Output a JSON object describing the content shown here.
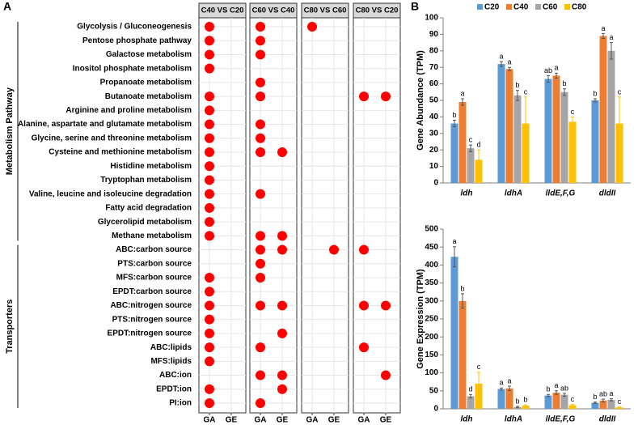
{
  "chart_data": [
    {
      "type": "dot-matrix",
      "panel": "A",
      "color": "#ff0000",
      "rows": [
        "Glycolysis / Gluconeogenesis",
        "Pentose phosphate pathway",
        "Galactose metabolism",
        "Inositol phosphate metabolism",
        "Propanoate metabolism",
        "Butanoate metabolism",
        "Arginine and proline metabolism",
        "Alanine, aspartate and glutamate metabolism",
        "Glycine, serine and threonine metabolism",
        "Cysteine and methionine metabolism",
        "Histidine metabolism",
        "Tryptophan metabolism",
        "Valine, leucine and isoleucine degradation",
        "Fatty acid degradation",
        "Glycerolipid metabolism",
        "Methane metabolism",
        "ABC:carbon source",
        "PTS:carbon source",
        "MFS:carbon source",
        "EPDT:carbon source",
        "ABC:nitrogen source",
        "PTS:nitrogen source",
        "EPDT:nitrogen source",
        "ABC:lipids",
        "MFS:lipids",
        "ABC:ion",
        "EPDT:ion",
        "PI:ion"
      ],
      "columns": [
        "GA",
        "GE"
      ],
      "groups": [
        {
          "label": "Metabolism Pathway",
          "rows": [
            0,
            15
          ]
        },
        {
          "label": "Transporters",
          "rows": [
            16,
            27
          ]
        }
      ],
      "facets": [
        {
          "title": "C40 VS C20",
          "hits": [
            [
              0,
              1,
              2,
              3,
              5,
              6,
              7,
              8,
              9,
              10,
              11,
              12,
              13,
              14,
              15,
              18,
              19,
              20,
              21,
              22,
              23,
              24,
              26,
              27
            ],
            []
          ]
        },
        {
          "title": "C60 VS C40",
          "hits": [
            [
              0,
              1,
              2,
              4,
              5,
              7,
              8,
              9,
              12,
              15,
              16,
              17,
              18,
              20,
              23,
              25,
              27
            ],
            [
              9,
              15,
              16,
              20,
              22,
              25,
              26
            ]
          ]
        },
        {
          "title": "C80 VS C60",
          "hits": [
            [
              0
            ],
            [
              16
            ]
          ]
        },
        {
          "title": "C80 VS C20",
          "hits": [
            [
              5,
              16,
              20,
              23
            ],
            [
              5,
              20,
              25
            ]
          ]
        }
      ]
    },
    {
      "type": "bar",
      "panel": "B",
      "y_label": "Gene Abundance (TPM)",
      "legend": "top",
      "categories": [
        "ldh",
        "ldhA",
        "lldE,F,G",
        "dldII"
      ],
      "ylim": [
        0,
        100
      ],
      "yticks": [
        0,
        10,
        20,
        30,
        40,
        50,
        60,
        70,
        80,
        90,
        100
      ],
      "series": [
        {
          "name": "C20",
          "color": "#5b9bd5",
          "values": [
            36,
            72,
            63,
            50
          ],
          "errors": [
            2,
            1.5,
            2,
            1
          ],
          "letters": [
            "b",
            "a",
            "ab",
            "b"
          ]
        },
        {
          "name": "C40",
          "color": "#ed7d31",
          "values": [
            49,
            69,
            65,
            89
          ],
          "errors": [
            2,
            1,
            1.5,
            1.5
          ],
          "letters": [
            "a",
            "a",
            "a",
            "a"
          ]
        },
        {
          "name": "C60",
          "color": "#a5a5a5",
          "values": [
            21,
            53,
            55,
            80
          ],
          "errors": [
            2,
            3,
            2,
            5
          ],
          "letters": [
            "c",
            "b",
            "b",
            "a"
          ]
        },
        {
          "name": "C80",
          "color": "#ffc000",
          "values": [
            14,
            36,
            37,
            36
          ],
          "errors": [
            6,
            16,
            3,
            16
          ],
          "letters": [
            "d",
            "c",
            "c",
            "c"
          ]
        }
      ]
    },
    {
      "type": "bar",
      "y_label": "Gene Expression (TPM)",
      "legend": false,
      "categories": [
        "ldh",
        "ldhA",
        "lldE,F,G",
        "dldII"
      ],
      "ylim": [
        0,
        500
      ],
      "yticks": [
        0,
        50,
        100,
        150,
        200,
        250,
        300,
        350,
        400,
        450,
        500
      ],
      "series": [
        {
          "name": "C20",
          "color": "#5b9bd5",
          "values": [
            423,
            55,
            37,
            17
          ],
          "errors": [
            28,
            3,
            3,
            2
          ],
          "letters": [
            "a",
            "a",
            "b",
            "b"
          ]
        },
        {
          "name": "C40",
          "color": "#ed7d31",
          "values": [
            300,
            57,
            45,
            23
          ],
          "errors": [
            20,
            6,
            5,
            4
          ],
          "letters": [
            "b",
            "a",
            "a",
            "ab"
          ]
        },
        {
          "name": "C60",
          "color": "#a5a5a5",
          "values": [
            35,
            5,
            39,
            25
          ],
          "errors": [
            5,
            2,
            4,
            3
          ],
          "letters": [
            "d",
            "b",
            "ab",
            "a"
          ]
        },
        {
          "name": "C80",
          "color": "#ffc000",
          "values": [
            70,
            9,
            10,
            4
          ],
          "errors": [
            32,
            2,
            2,
            1
          ],
          "letters": [
            "c",
            "b",
            "c",
            "c"
          ]
        }
      ]
    }
  ]
}
